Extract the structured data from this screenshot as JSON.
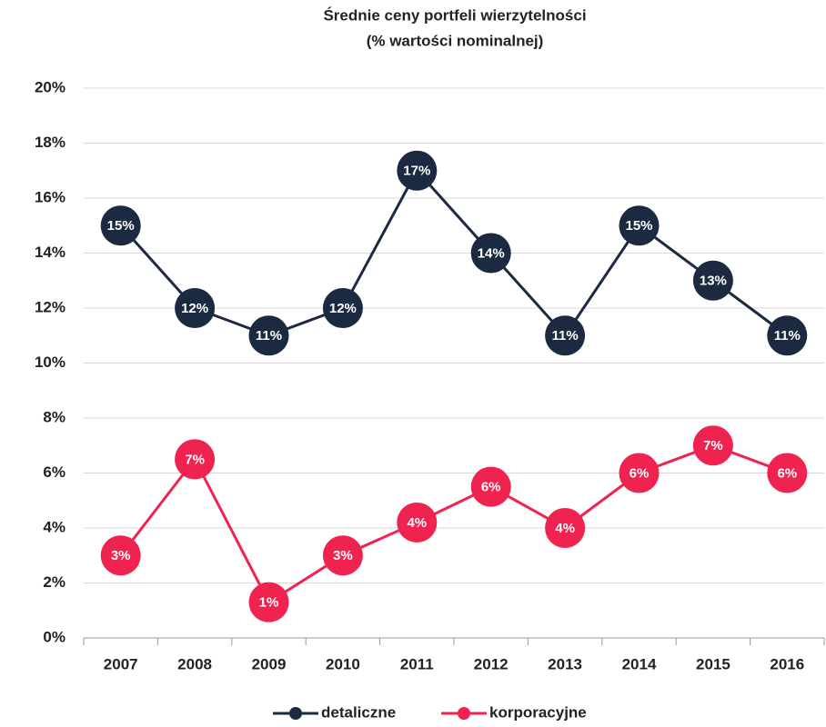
{
  "chart_data": {
    "type": "line",
    "title": "Średnie ceny portfeli wierzytelności",
    "subtitle": "(% wartości nominalnej)",
    "categories": [
      "2007",
      "2008",
      "2009",
      "2010",
      "2011",
      "2012",
      "2013",
      "2014",
      "2015",
      "2016"
    ],
    "series": [
      {
        "name": "detaliczne",
        "color": "#1b2a41",
        "values": [
          15,
          12,
          11,
          12,
          17,
          14,
          11,
          15,
          13,
          11
        ],
        "value_labels": [
          "15%",
          "12%",
          "11%",
          "12%",
          "17%",
          "14%",
          "11%",
          "15%",
          "13%",
          "11%"
        ]
      },
      {
        "name": "korporacyjne",
        "color": "#f0224f",
        "values": [
          3,
          6.5,
          1.3,
          3,
          4.2,
          5.5,
          4,
          6,
          7,
          6
        ],
        "value_labels": [
          "3%",
          "7%",
          "1%",
          "3%",
          "4%",
          "6%",
          "4%",
          "6%",
          "7%",
          "6%"
        ]
      }
    ],
    "ylim": [
      0,
      20
    ],
    "yticks": [
      {
        "value": 0,
        "label": "0%"
      },
      {
        "value": 2,
        "label": "2%"
      },
      {
        "value": 4,
        "label": "4%"
      },
      {
        "value": 6,
        "label": "6%"
      },
      {
        "value": 8,
        "label": "8%"
      },
      {
        "value": 10,
        "label": "10%"
      },
      {
        "value": 12,
        "label": "12%"
      },
      {
        "value": 14,
        "label": "14%"
      },
      {
        "value": 16,
        "label": "16%"
      },
      {
        "value": 18,
        "label": "18%"
      },
      {
        "value": 20,
        "label": "20%"
      }
    ],
    "grid": true,
    "legend": "bottom"
  }
}
